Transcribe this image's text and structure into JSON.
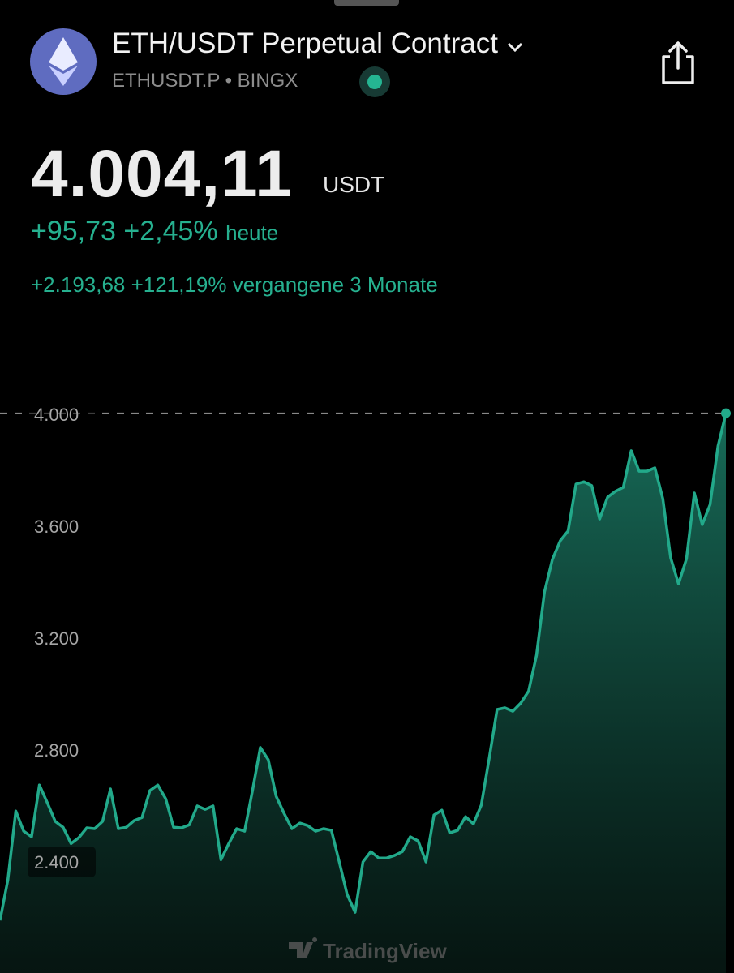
{
  "header": {
    "title": "ETH/USDT Perpetual Contract",
    "symbol": "ETHUSDT.P",
    "separator": "•",
    "exchange": "BINGX"
  },
  "quote": {
    "price": "4.004,11",
    "currency": "USDT",
    "change": "+95,73",
    "change_pct": "+2,45%",
    "change_period": "heute",
    "long_change": "+2.193,68",
    "long_change_pct": "+121,19%",
    "long_change_period": "vergangene 3 Monate"
  },
  "watermark": "TradingView",
  "chart_data": {
    "type": "line",
    "color": "#22a98a",
    "grid": false,
    "ylim": [
      2003,
      4206
    ],
    "yticks": [
      {
        "value": 2400,
        "label": "2.400"
      },
      {
        "value": 2800,
        "label": "2.800"
      },
      {
        "value": 3200,
        "label": "3.200"
      },
      {
        "value": 3600,
        "label": "3.600"
      },
      {
        "value": 4000,
        "label": "4.000"
      }
    ],
    "values": [
      2191,
      2336,
      2582,
      2510,
      2490,
      2675,
      2611,
      2545,
      2524,
      2466,
      2487,
      2522,
      2519,
      2545,
      2661,
      2519,
      2524,
      2548,
      2559,
      2655,
      2675,
      2626,
      2524,
      2522,
      2533,
      2600,
      2588,
      2600,
      2408,
      2466,
      2519,
      2510,
      2655,
      2809,
      2765,
      2635,
      2574,
      2519,
      2539,
      2530,
      2510,
      2519,
      2513,
      2400,
      2284,
      2220,
      2400,
      2437,
      2414,
      2414,
      2423,
      2437,
      2490,
      2475,
      2400,
      2568,
      2585,
      2504,
      2513,
      2562,
      2536,
      2603,
      2771,
      2945,
      2951,
      2939,
      2968,
      3011,
      3139,
      3365,
      3481,
      3548,
      3583,
      3751,
      3759,
      3745,
      3626,
      3704,
      3725,
      3739,
      3870,
      3797,
      3797,
      3809,
      3699,
      3487,
      3394,
      3484,
      3719,
      3606,
      3678,
      3887,
      4004
    ]
  }
}
